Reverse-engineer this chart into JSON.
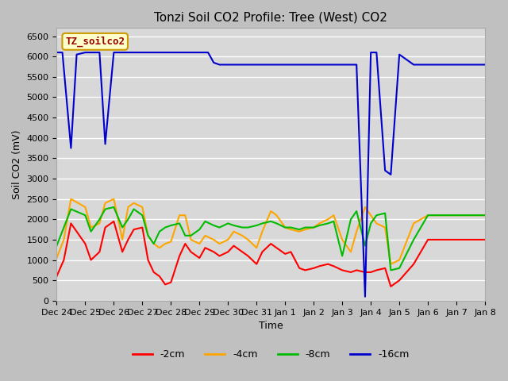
{
  "title": "Tonzi Soil CO2 Profile: Tree (West) CO2",
  "xlabel": "Time",
  "ylabel": "Soil CO2 (mV)",
  "ylim": [
    0,
    6700
  ],
  "yticks": [
    0,
    500,
    1000,
    1500,
    2000,
    2500,
    3000,
    3500,
    4000,
    4500,
    5000,
    5500,
    6000,
    6500
  ],
  "legend_label": "TZ_soilco2",
  "line_colors": {
    "-2cm": "#ff0000",
    "-4cm": "#ffa500",
    "-8cm": "#00bb00",
    "-16cm": "#0000cc"
  },
  "xlim": [
    0,
    15
  ],
  "x_tick_positions": [
    0,
    1,
    2,
    3,
    4,
    5,
    6,
    7,
    8,
    9,
    10,
    11,
    12,
    13,
    14,
    15
  ],
  "x_labels": [
    "Dec 24",
    "Dec 25",
    "Dec 26",
    "Dec 27",
    "Dec 28",
    "Dec 29",
    "Dec 30",
    "Dec 31",
    "Jan 1",
    "Jan 2",
    "Jan 3",
    "Jan 4",
    "Jan 5",
    "Jan 6",
    "Jan 7",
    "Jan 8"
  ],
  "series": {
    "-2cm": {
      "x": [
        0,
        0.25,
        0.5,
        1.0,
        1.2,
        1.5,
        1.7,
        2.0,
        2.3,
        2.5,
        2.7,
        3.0,
        3.2,
        3.4,
        3.6,
        3.8,
        4.0,
        4.3,
        4.5,
        4.7,
        5.0,
        5.2,
        5.5,
        5.7,
        6.0,
        6.2,
        6.5,
        6.7,
        7.0,
        7.2,
        7.5,
        7.7,
        8.0,
        8.2,
        8.5,
        8.7,
        9.0,
        9.2,
        9.5,
        9.7,
        10.0,
        10.3,
        10.5,
        10.8,
        11.0,
        11.2,
        11.5,
        11.7,
        12.0,
        12.5,
        13.0,
        13.5,
        14.0,
        14.5,
        15.0
      ],
      "y": [
        600,
        1000,
        1900,
        1400,
        1000,
        1200,
        1800,
        1950,
        1200,
        1500,
        1750,
        1800,
        1000,
        700,
        600,
        400,
        450,
        1100,
        1400,
        1200,
        1050,
        1300,
        1200,
        1100,
        1200,
        1350,
        1200,
        1100,
        900,
        1200,
        1400,
        1300,
        1150,
        1200,
        800,
        750,
        800,
        850,
        900,
        850,
        750,
        700,
        750,
        700,
        700,
        750,
        800,
        350,
        500,
        900,
        1500,
        1500,
        1500,
        1500,
        1500
      ]
    },
    "-4cm": {
      "x": [
        0,
        0.25,
        0.5,
        1.0,
        1.2,
        1.5,
        1.7,
        2.0,
        2.3,
        2.5,
        2.7,
        3.0,
        3.2,
        3.4,
        3.6,
        3.8,
        4.0,
        4.3,
        4.5,
        4.7,
        5.0,
        5.2,
        5.5,
        5.7,
        6.0,
        6.2,
        6.5,
        6.7,
        7.0,
        7.2,
        7.5,
        7.7,
        8.0,
        8.2,
        8.5,
        8.7,
        9.0,
        9.2,
        9.5,
        9.7,
        10.0,
        10.3,
        10.5,
        10.8,
        11.0,
        11.2,
        11.5,
        11.7,
        12.0,
        12.5,
        13.0,
        13.5,
        14.0,
        14.5,
        15.0
      ],
      "y": [
        1050,
        1500,
        2500,
        2300,
        1800,
        1900,
        2400,
        2500,
        1500,
        2300,
        2400,
        2300,
        1600,
        1400,
        1300,
        1400,
        1450,
        2100,
        2100,
        1500,
        1400,
        1600,
        1500,
        1400,
        1500,
        1700,
        1600,
        1500,
        1300,
        1700,
        2200,
        2100,
        1800,
        1750,
        1700,
        1750,
        1800,
        1900,
        2000,
        2100,
        1500,
        1200,
        1700,
        2300,
        2100,
        1900,
        1800,
        900,
        1000,
        1900,
        2100,
        2100,
        2100,
        2100,
        2100
      ]
    },
    "-8cm": {
      "x": [
        0,
        0.25,
        0.5,
        1.0,
        1.2,
        1.5,
        1.7,
        2.0,
        2.3,
        2.5,
        2.7,
        3.0,
        3.2,
        3.4,
        3.6,
        3.8,
        4.0,
        4.3,
        4.5,
        4.7,
        5.0,
        5.2,
        5.5,
        5.7,
        6.0,
        6.2,
        6.5,
        6.7,
        7.0,
        7.2,
        7.5,
        7.7,
        8.0,
        8.2,
        8.5,
        8.7,
        9.0,
        9.2,
        9.5,
        9.7,
        10.0,
        10.3,
        10.5,
        10.8,
        11.0,
        11.2,
        11.5,
        11.7,
        12.0,
        12.5,
        13.0,
        13.5,
        14.0,
        14.5,
        15.0
      ],
      "y": [
        1350,
        1800,
        2250,
        2100,
        1700,
        2000,
        2250,
        2300,
        1800,
        2000,
        2250,
        2100,
        1600,
        1400,
        1700,
        1800,
        1850,
        1900,
        1600,
        1600,
        1750,
        1950,
        1850,
        1800,
        1900,
        1850,
        1800,
        1800,
        1850,
        1900,
        1950,
        1900,
        1800,
        1800,
        1750,
        1800,
        1800,
        1850,
        1900,
        1950,
        1100,
        2000,
        2200,
        1350,
        1900,
        2100,
        2150,
        750,
        800,
        1500,
        2100,
        2100,
        2100,
        2100,
        2100
      ]
    },
    "-16cm": {
      "x": [
        0,
        0.2,
        0.5,
        0.7,
        1.0,
        1.3,
        1.5,
        1.7,
        2.0,
        2.3,
        2.5,
        2.7,
        3.0,
        3.3,
        3.5,
        3.7,
        4.0,
        4.3,
        4.5,
        4.7,
        5.0,
        5.3,
        5.5,
        5.7,
        6.0,
        6.3,
        6.5,
        6.7,
        7.0,
        7.3,
        7.5,
        7.7,
        8.0,
        8.3,
        8.5,
        8.7,
        9.0,
        9.3,
        9.5,
        9.7,
        10.0,
        10.3,
        10.5,
        10.8,
        11.0,
        11.2,
        11.5,
        11.7,
        12.0,
        12.5,
        13.0,
        13.5,
        14.0,
        14.5,
        15.0
      ],
      "y": [
        6100,
        6100,
        3750,
        6050,
        6100,
        6100,
        6100,
        3850,
        6100,
        6100,
        6100,
        6100,
        6100,
        6100,
        6100,
        6100,
        6100,
        6100,
        6100,
        6100,
        6100,
        6100,
        5850,
        5800,
        5800,
        5800,
        5800,
        5800,
        5800,
        5800,
        5800,
        5800,
        5800,
        5800,
        5800,
        5800,
        5800,
        5800,
        5800,
        5800,
        5800,
        5800,
        5800,
        100,
        6100,
        6100,
        3200,
        3100,
        6050,
        5800,
        5800,
        5800,
        5800,
        5800,
        5800
      ]
    }
  }
}
